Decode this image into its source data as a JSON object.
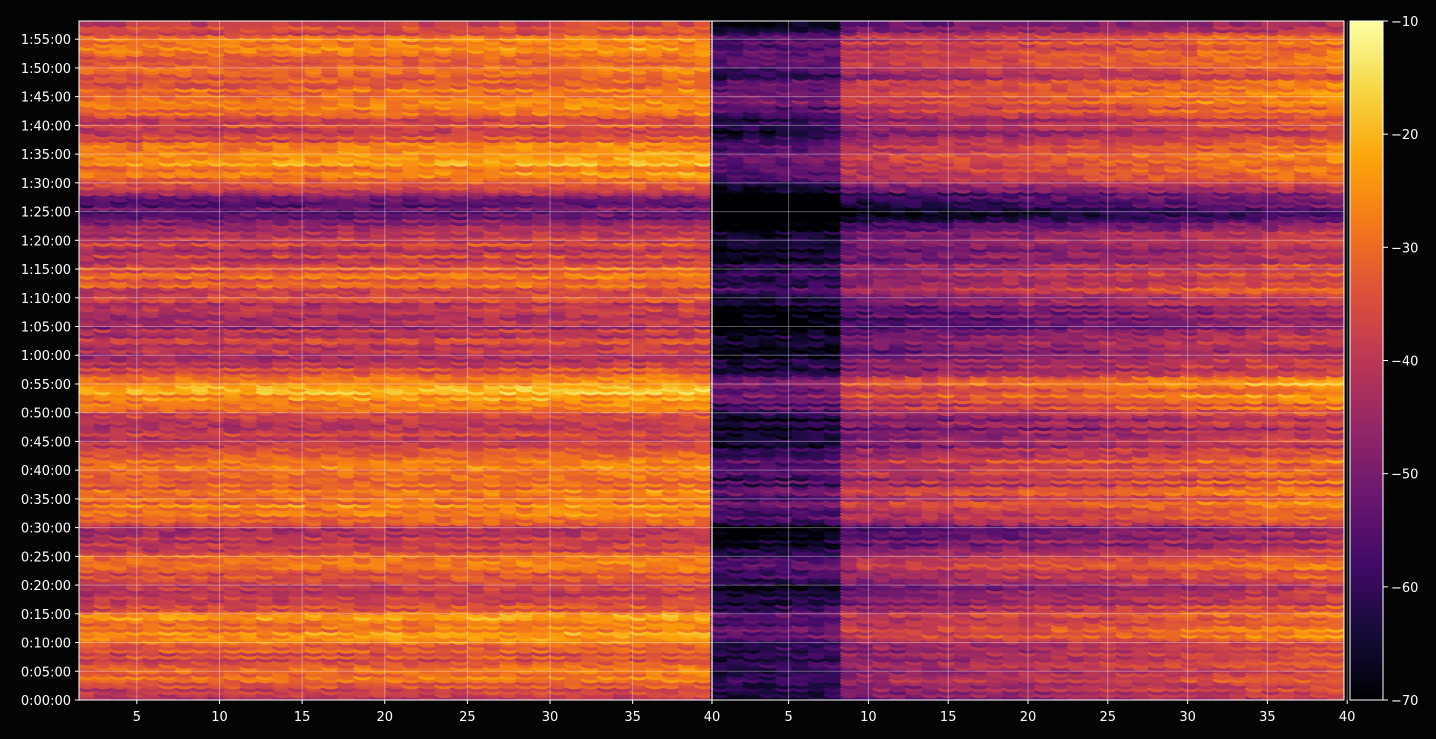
{
  "chart_data": {
    "type": "heatmap",
    "title": "",
    "xlabel": "",
    "ylabel": "",
    "colormap": "inferno",
    "background": "#040405",
    "panels": [
      {
        "x_range": [
          1.5,
          39.8
        ],
        "x_ticks": [
          5,
          10,
          15,
          20,
          25,
          30,
          35
        ],
        "x_tick_labels": [
          "5",
          "10",
          "15",
          "20",
          "25",
          "30",
          "35"
        ]
      },
      {
        "x_range": [
          0.2,
          39.8
        ],
        "x_ticks": [
          5,
          10,
          15,
          20,
          25,
          30,
          35,
          40
        ],
        "x_tick_labels": [
          "5",
          "10",
          "15",
          "20",
          "25",
          "30",
          "35",
          "40"
        ]
      }
    ],
    "panel_boundary_label": "40",
    "y_range_seconds": [
      0,
      7090
    ],
    "y_ticks_seconds": [
      0,
      300,
      600,
      900,
      1200,
      1500,
      1800,
      2100,
      2400,
      2700,
      3000,
      3300,
      3600,
      3900,
      4200,
      4500,
      4800,
      5100,
      5400,
      5700,
      6000,
      6300,
      6600,
      6900
    ],
    "y_tick_labels": [
      "0:00:00",
      "0:05:00",
      "0:10:00",
      "0:15:00",
      "0:20:00",
      "0:25:00",
      "0:30:00",
      "0:35:00",
      "0:40:00",
      "0:45:00",
      "0:50:00",
      "0:55:00",
      "1:00:00",
      "1:05:00",
      "1:10:00",
      "1:15:00",
      "1:20:00",
      "1:25:00",
      "1:30:00",
      "1:35:00",
      "1:40:00",
      "1:45:00",
      "1:50:00",
      "1:55:00"
    ],
    "colorbar": {
      "min": -70,
      "max": -10,
      "ticks": [
        -10,
        -20,
        -30,
        -40,
        -50,
        -60,
        -70
      ],
      "tick_labels": [
        "−10",
        "−20",
        "−30",
        "−40",
        "−50",
        "−60",
        "−70"
      ]
    },
    "grid": true,
    "value_profile_by_time": [
      {
        "t": 0,
        "v": -46
      },
      {
        "t": 300,
        "v": -34
      },
      {
        "t": 600,
        "v": -33
      },
      {
        "t": 900,
        "v": -30
      },
      {
        "t": 1200,
        "v": -42
      },
      {
        "t": 1500,
        "v": -33
      },
      {
        "t": 1800,
        "v": -42
      },
      {
        "t": 2100,
        "v": -30
      },
      {
        "t": 2400,
        "v": -28
      },
      {
        "t": 2700,
        "v": -42
      },
      {
        "t": 3000,
        "v": -34
      },
      {
        "t": 3300,
        "v": -27
      },
      {
        "t": 3600,
        "v": -40
      },
      {
        "t": 3900,
        "v": -48
      },
      {
        "t": 4200,
        "v": -36
      },
      {
        "t": 4500,
        "v": -38
      },
      {
        "t": 4800,
        "v": -36
      },
      {
        "t": 5100,
        "v": -60
      },
      {
        "t": 5400,
        "v": -34
      },
      {
        "t": 5700,
        "v": -28
      },
      {
        "t": 6000,
        "v": -36
      },
      {
        "t": 6300,
        "v": -30
      },
      {
        "t": 6600,
        "v": -31
      },
      {
        "t": 6900,
        "v": -34
      },
      {
        "t": 7090,
        "v": -40
      }
    ]
  }
}
